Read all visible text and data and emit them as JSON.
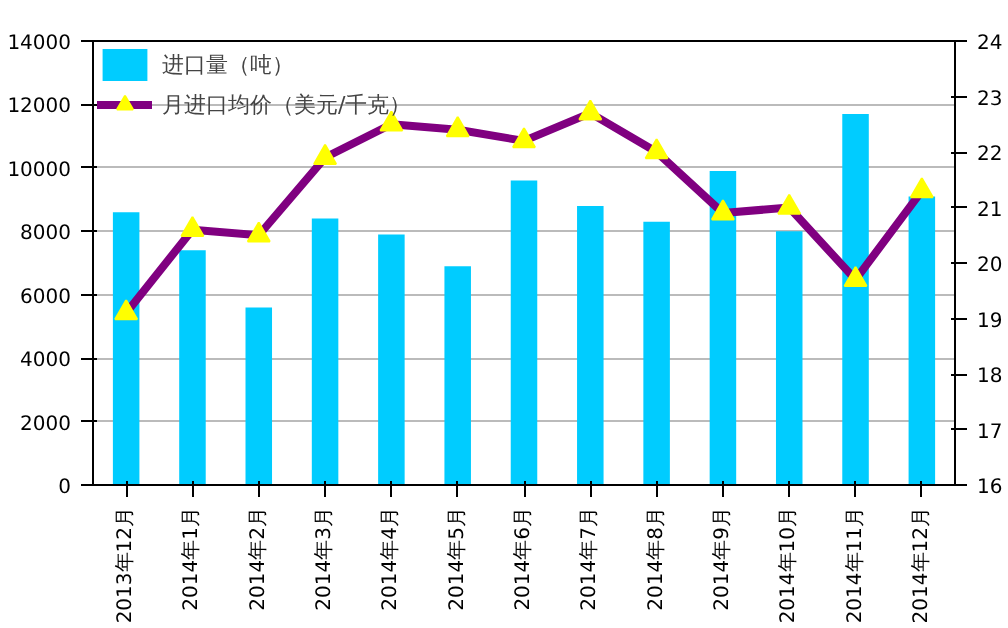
{
  "chart_data": {
    "type": "bar",
    "categories": [
      "2013年12月",
      "2014年1月",
      "2014年2月",
      "2014年3月",
      "2014年4月",
      "2014年5月",
      "2014年6月",
      "2014年7月",
      "2014年8月",
      "2014年9月",
      "2014年10月",
      "2014年11月",
      "2014年12月"
    ],
    "series": [
      {
        "name": "进口量（吨）",
        "color": "#00ccff",
        "values": [
          8600,
          7400,
          5600,
          8400,
          7900,
          6900,
          9600,
          8800,
          8300,
          9900,
          8000,
          11700,
          9100
        ]
      },
      {
        "name": "月进口均价（美元/千克）",
        "type": "line",
        "axis": "y2",
        "color": "#800080",
        "marker": "triangle",
        "values": [
          19.1,
          20.6,
          20.5,
          21.9,
          22.5,
          22.4,
          22.2,
          22.7,
          22.0,
          20.9,
          21.0,
          19.7,
          21.3
        ]
      }
    ],
    "ylim": [
      0,
      14000
    ],
    "yticks": [
      0,
      2000,
      4000,
      6000,
      8000,
      10000,
      12000,
      14000
    ],
    "y2lim": [
      16,
      24
    ],
    "y2ticks": [
      16,
      17,
      18,
      19,
      20,
      21,
      22,
      23,
      24
    ],
    "grid": "y",
    "legend": "top left"
  }
}
